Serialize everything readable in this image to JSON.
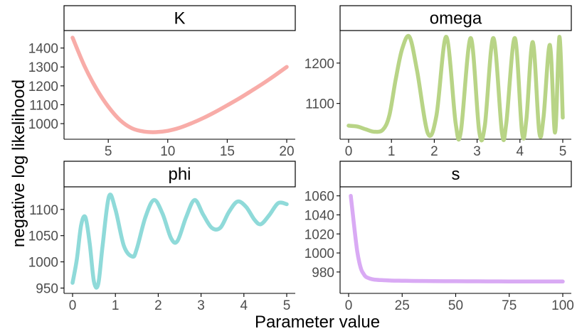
{
  "chart_data": {
    "type": "line",
    "xlabel": "Parameter value",
    "ylabel": "negative log likelihood",
    "panels": [
      {
        "title": "K",
        "color": "#f8aca8",
        "x_range": [
          2,
          20
        ],
        "x_ticks": [
          5,
          10,
          15,
          20
        ],
        "y_range": [
          940,
          1470
        ],
        "y_ticks": [
          1000,
          1100,
          1200,
          1300,
          1400
        ],
        "x": [
          2,
          3,
          4,
          5,
          6,
          7,
          8,
          9,
          10,
          11,
          12,
          13,
          14,
          15,
          16,
          17,
          18,
          19,
          20
        ],
        "y": [
          1455,
          1305,
          1185,
          1090,
          1018,
          975,
          958,
          955,
          962,
          978,
          1002,
          1030,
          1062,
          1097,
          1133,
          1172,
          1212,
          1255,
          1300
        ]
      },
      {
        "title": "omega",
        "color": "#b8d486",
        "x_range": [
          0,
          5
        ],
        "x_ticks": [
          0,
          1,
          2,
          3,
          4,
          5
        ],
        "y_range": [
          1022,
          1270
        ],
        "y_ticks": [
          1100,
          1200
        ],
        "x": [
          0,
          0.2,
          0.4,
          0.6,
          0.8,
          0.95,
          1.1,
          1.25,
          1.42,
          1.6,
          1.85,
          2.05,
          2.28,
          2.5,
          2.62,
          2.85,
          3.05,
          3.18,
          3.38,
          3.58,
          3.68,
          3.88,
          4.05,
          4.15,
          4.3,
          4.45,
          4.55,
          4.7,
          4.82,
          4.92,
          5.0
        ],
        "y": [
          1045,
          1043,
          1036,
          1030,
          1035,
          1070,
          1160,
          1235,
          1265,
          1180,
          1026,
          1070,
          1265,
          1050,
          1030,
          1262,
          1030,
          1045,
          1262,
          1028,
          1050,
          1262,
          1028,
          1060,
          1252,
          1030,
          1065,
          1245,
          1028,
          1265,
          1065
        ]
      },
      {
        "title": "phi",
        "color": "#8fdad9",
        "x_range": [
          0,
          5
        ],
        "x_ticks": [
          0,
          1,
          2,
          3,
          4,
          5
        ],
        "y_range": [
          948,
          1135
        ],
        "y_ticks": [
          950,
          1000,
          1050,
          1100
        ],
        "x": [
          0,
          0.1,
          0.2,
          0.3,
          0.4,
          0.5,
          0.6,
          0.7,
          0.85,
          1.0,
          1.2,
          1.4,
          1.5,
          1.7,
          1.9,
          2.1,
          2.3,
          2.45,
          2.65,
          2.85,
          3.05,
          3.25,
          3.45,
          3.65,
          3.85,
          4.05,
          4.25,
          4.4,
          4.6,
          4.8,
          5.0
        ],
        "y": [
          960,
          1005,
          1070,
          1085,
          1035,
          962,
          958,
          1030,
          1125,
          1100,
          1030,
          1010,
          1025,
          1085,
          1118,
          1092,
          1045,
          1040,
          1085,
          1118,
          1090,
          1065,
          1065,
          1095,
          1115,
          1105,
          1080,
          1072,
          1090,
          1112,
          1110
        ]
      },
      {
        "title": "s",
        "color": "#d9aaf4",
        "x_range": [
          0,
          100
        ],
        "x_ticks": [
          0,
          25,
          50,
          75,
          100
        ],
        "y_range": [
          962,
          1065
        ],
        "y_ticks": [
          980,
          1000,
          1020,
          1040,
          1060
        ],
        "x": [
          1,
          2,
          3,
          4,
          5,
          6,
          7,
          8,
          10,
          12,
          15,
          20,
          25,
          30,
          40,
          50,
          60,
          70,
          80,
          90,
          100
        ],
        "y": [
          1060,
          1040,
          1020,
          1002,
          990,
          982,
          978,
          975,
          973,
          972,
          971.5,
          971,
          970.8,
          970.6,
          970.4,
          970.3,
          970.2,
          970.1,
          970,
          970,
          970
        ]
      }
    ]
  }
}
